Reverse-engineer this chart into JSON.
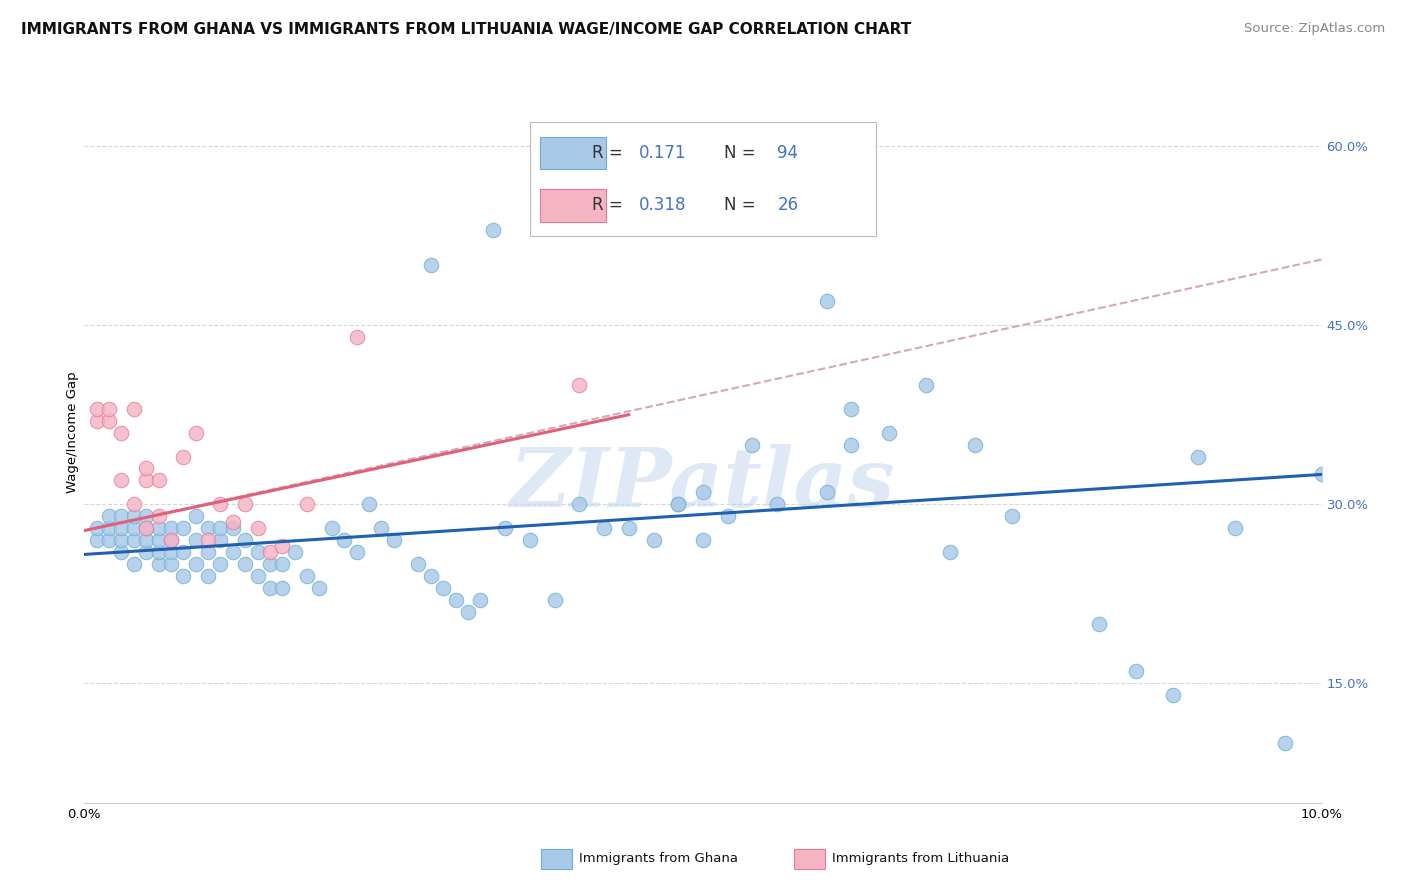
{
  "title": "IMMIGRANTS FROM GHANA VS IMMIGRANTS FROM LITHUANIA WAGE/INCOME GAP CORRELATION CHART",
  "source": "Source: ZipAtlas.com",
  "ylabel": "Wage/Income Gap",
  "xlim": [
    0.0,
    0.1
  ],
  "ylim": [
    0.05,
    0.67
  ],
  "ghana_color": "#aac8e8",
  "ghana_edge": "#6aaed6",
  "lithuania_color": "#f4b4c4",
  "lithuania_edge": "#e87898",
  "ghana_line_color": "#2060b0",
  "lithuania_line_color": "#e0607a",
  "dashed_line_color": "#d4a8b8",
  "legend_value_color": "#4472c4",
  "right_axis_color": "#4472c4",
  "R_ghana": 0.171,
  "N_ghana": 94,
  "R_lithuania": 0.318,
  "N_lithuania": 26,
  "ghana_scatter_x": [
    0.001,
    0.001,
    0.002,
    0.002,
    0.002,
    0.003,
    0.003,
    0.003,
    0.003,
    0.004,
    0.004,
    0.004,
    0.004,
    0.005,
    0.005,
    0.005,
    0.005,
    0.006,
    0.006,
    0.006,
    0.006,
    0.007,
    0.007,
    0.007,
    0.007,
    0.008,
    0.008,
    0.008,
    0.009,
    0.009,
    0.009,
    0.01,
    0.01,
    0.01,
    0.011,
    0.011,
    0.011,
    0.012,
    0.012,
    0.013,
    0.013,
    0.014,
    0.014,
    0.015,
    0.015,
    0.016,
    0.016,
    0.017,
    0.018,
    0.019,
    0.02,
    0.021,
    0.022,
    0.023,
    0.024,
    0.025,
    0.027,
    0.028,
    0.029,
    0.03,
    0.031,
    0.032,
    0.034,
    0.036,
    0.038,
    0.04,
    0.042,
    0.044,
    0.046,
    0.048,
    0.05,
    0.052,
    0.054,
    0.056,
    0.06,
    0.062,
    0.065,
    0.068,
    0.072,
    0.075,
    0.082,
    0.085,
    0.088,
    0.09,
    0.093,
    0.097,
    0.1,
    0.028,
    0.033,
    0.048,
    0.05,
    0.06,
    0.062,
    0.07
  ],
  "ghana_scatter_y": [
    0.27,
    0.28,
    0.27,
    0.28,
    0.29,
    0.26,
    0.27,
    0.28,
    0.29,
    0.25,
    0.27,
    0.28,
    0.29,
    0.26,
    0.27,
    0.28,
    0.29,
    0.25,
    0.26,
    0.27,
    0.28,
    0.25,
    0.26,
    0.27,
    0.28,
    0.24,
    0.26,
    0.28,
    0.25,
    0.27,
    0.29,
    0.24,
    0.26,
    0.28,
    0.25,
    0.27,
    0.28,
    0.26,
    0.28,
    0.25,
    0.27,
    0.24,
    0.26,
    0.23,
    0.25,
    0.23,
    0.25,
    0.26,
    0.24,
    0.23,
    0.28,
    0.27,
    0.26,
    0.3,
    0.28,
    0.27,
    0.25,
    0.24,
    0.23,
    0.22,
    0.21,
    0.22,
    0.28,
    0.27,
    0.22,
    0.3,
    0.28,
    0.28,
    0.27,
    0.3,
    0.31,
    0.29,
    0.35,
    0.3,
    0.31,
    0.38,
    0.36,
    0.4,
    0.35,
    0.29,
    0.2,
    0.16,
    0.14,
    0.34,
    0.28,
    0.1,
    0.325,
    0.5,
    0.53,
    0.3,
    0.27,
    0.47,
    0.35,
    0.26
  ],
  "lithuania_scatter_x": [
    0.001,
    0.001,
    0.002,
    0.002,
    0.003,
    0.003,
    0.004,
    0.004,
    0.005,
    0.005,
    0.005,
    0.006,
    0.006,
    0.007,
    0.008,
    0.009,
    0.01,
    0.011,
    0.012,
    0.013,
    0.014,
    0.015,
    0.016,
    0.018,
    0.022,
    0.04
  ],
  "lithuania_scatter_y": [
    0.37,
    0.38,
    0.37,
    0.38,
    0.32,
    0.36,
    0.3,
    0.38,
    0.28,
    0.32,
    0.33,
    0.29,
    0.32,
    0.27,
    0.34,
    0.36,
    0.27,
    0.3,
    0.285,
    0.3,
    0.28,
    0.26,
    0.265,
    0.3,
    0.44,
    0.4
  ],
  "ghana_trend_x": [
    0.0,
    0.1
  ],
  "ghana_trend_y": [
    0.258,
    0.325
  ],
  "lithuania_trend_x": [
    0.0,
    0.044
  ],
  "lithuania_trend_y": [
    0.278,
    0.375
  ],
  "dashed_trend_x": [
    0.0,
    0.1
  ],
  "dashed_trend_y": [
    0.278,
    0.505
  ],
  "right_yticks": [
    0.15,
    0.3,
    0.45,
    0.6
  ],
  "right_ytick_labels": [
    "15.0%",
    "30.0%",
    "45.0%",
    "60.0%"
  ],
  "grid_yticks": [
    0.15,
    0.3,
    0.45,
    0.6
  ],
  "watermark": "ZIPatlas",
  "title_fontsize": 11,
  "source_fontsize": 9.5,
  "tick_fontsize": 9.5,
  "legend_fontsize": 12
}
